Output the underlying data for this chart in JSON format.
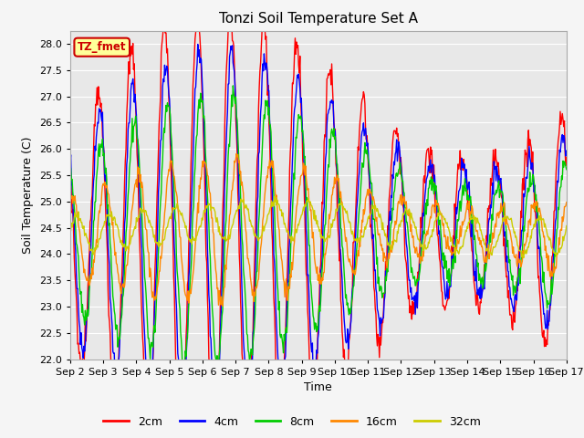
{
  "title": "Tonzi Soil Temperature Set A",
  "xlabel": "Time",
  "ylabel": "Soil Temperature (C)",
  "ylim": [
    22.0,
    28.25
  ],
  "yticks": [
    22.0,
    22.5,
    23.0,
    23.5,
    24.0,
    24.5,
    25.0,
    25.5,
    26.0,
    26.5,
    27.0,
    27.5,
    28.0
  ],
  "xtick_labels": [
    "Sep 2",
    "Sep 3",
    "Sep 4",
    "Sep 5",
    "Sep 6",
    "Sep 7",
    "Sep 8",
    "Sep 9",
    "Sep 10",
    "Sep 11",
    "Sep 12",
    "Sep 13",
    "Sep 14",
    "Sep 15",
    "Sep 16",
    "Sep 17"
  ],
  "colors": {
    "2cm": "#ff0000",
    "4cm": "#0000ff",
    "8cm": "#00cc00",
    "16cm": "#ff8800",
    "32cm": "#cccc00"
  },
  "plot_bg": "#e8e8e8",
  "fig_bg": "#f5f5f5",
  "grid_color": "#ffffff",
  "annotation_text": "TZ_fmet",
  "annotation_bg": "#ffff99",
  "annotation_border": "#cc0000",
  "title_fontsize": 11,
  "axis_fontsize": 9,
  "tick_fontsize": 8
}
